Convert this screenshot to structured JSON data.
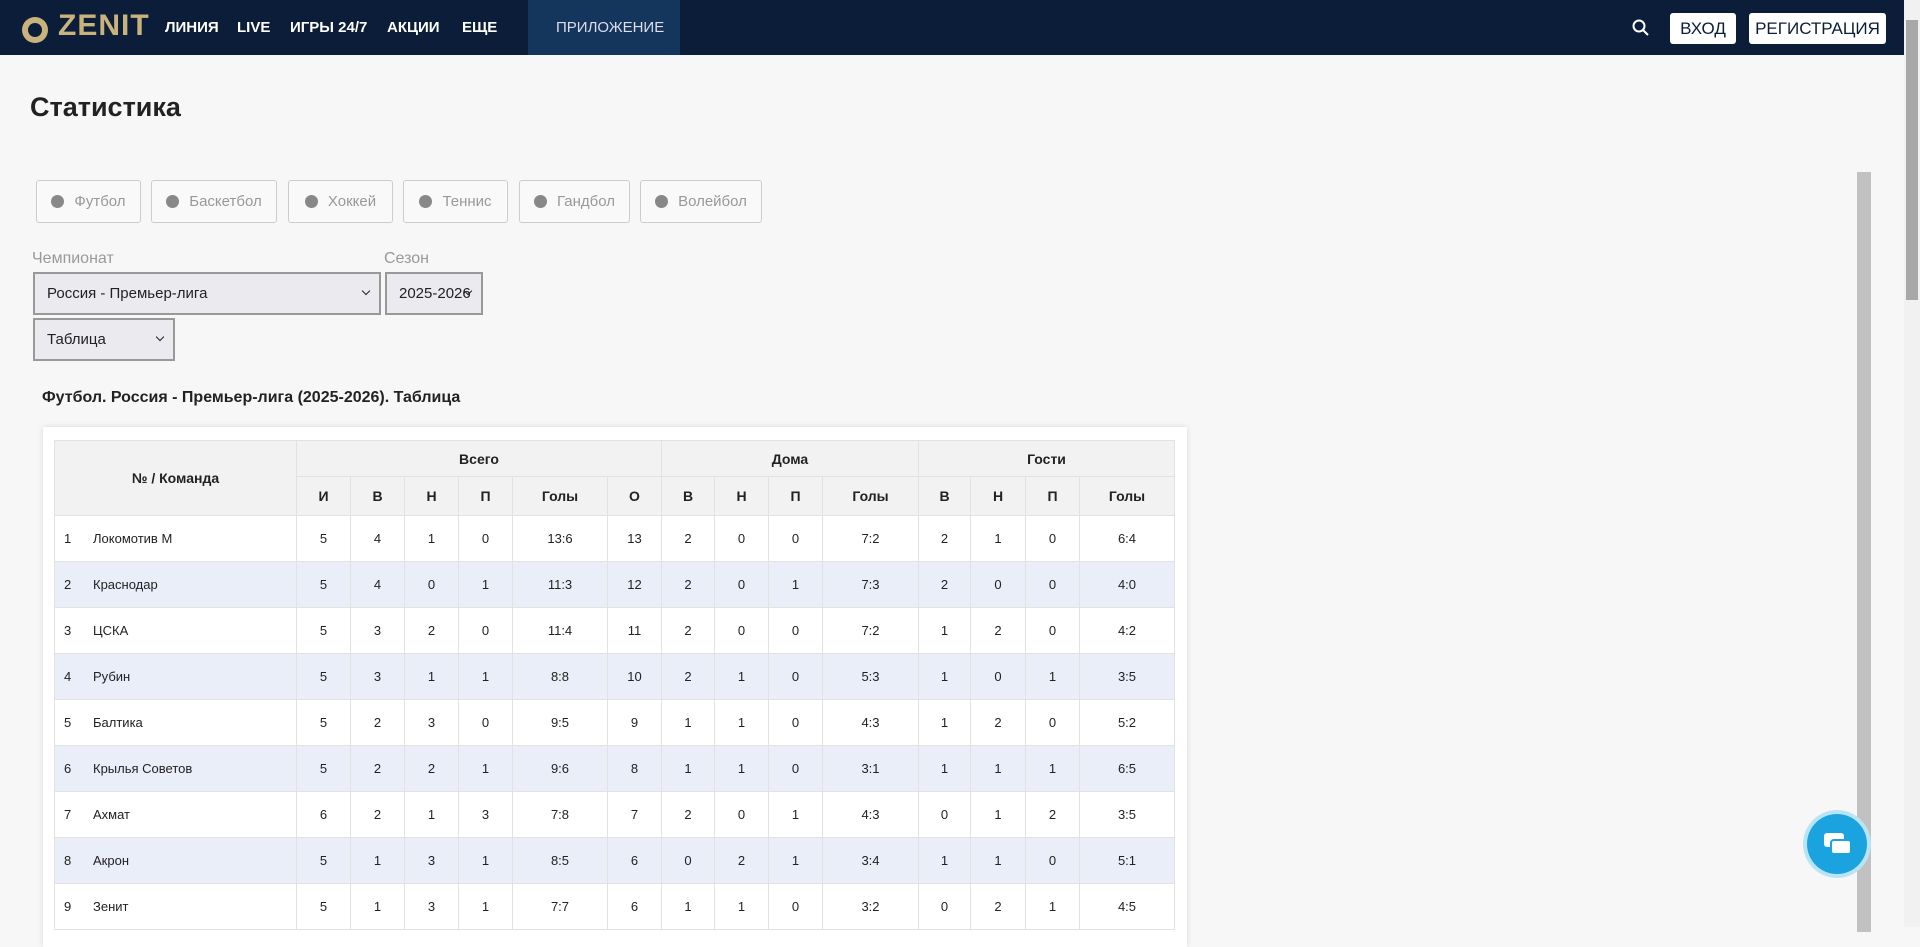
{
  "nav": {
    "logo": "ZENIT",
    "items": [
      "ЛИНИЯ",
      "LIVE",
      "ИГРЫ 24/7",
      "АКЦИИ",
      "ЕЩЕ",
      "ПРИЛОЖЕНИЕ"
    ],
    "login": "ВХОД",
    "register": "РЕГИСТРАЦИЯ"
  },
  "page": {
    "title": "Статистика",
    "sports": [
      "Футбол",
      "Баскетбол",
      "Хоккей",
      "Теннис",
      "Гандбол",
      "Волейбол"
    ],
    "championship_label": "Чемпионат",
    "championship": "Россия - Премьер-лига",
    "season_label": "Сезон",
    "season": "2025-2026",
    "view": "Таблица"
  },
  "table": {
    "title": "Футбол. Россия - Премьер-лига (2025-2026). Таблица",
    "groups": [
      "№ / Команда",
      "Всего",
      "Дома",
      "Гости"
    ],
    "columns": [
      "И",
      "В",
      "Н",
      "П",
      "Голы",
      "О",
      "В",
      "Н",
      "П",
      "Голы",
      "В",
      "Н",
      "П",
      "Голы"
    ],
    "rows": [
      [
        1,
        "Локомотив М",
        5,
        4,
        1,
        0,
        "13:6",
        13,
        2,
        0,
        0,
        "7:2",
        2,
        1,
        0,
        "6:4"
      ],
      [
        2,
        "Краснодар",
        5,
        4,
        0,
        1,
        "11:3",
        12,
        2,
        0,
        1,
        "7:3",
        2,
        0,
        0,
        "4:0"
      ],
      [
        3,
        "ЦСКА",
        5,
        3,
        2,
        0,
        "11:4",
        11,
        2,
        0,
        0,
        "7:2",
        1,
        2,
        0,
        "4:2"
      ],
      [
        4,
        "Рубин",
        5,
        3,
        1,
        1,
        "8:8",
        10,
        2,
        1,
        0,
        "5:3",
        1,
        0,
        1,
        "3:5"
      ],
      [
        5,
        "Балтика",
        5,
        2,
        3,
        0,
        "9:5",
        9,
        1,
        1,
        0,
        "4:3",
        1,
        2,
        0,
        "5:2"
      ],
      [
        6,
        "Крылья Советов",
        5,
        2,
        2,
        1,
        "9:6",
        8,
        1,
        1,
        0,
        "3:1",
        1,
        1,
        1,
        "6:5"
      ],
      [
        7,
        "Ахмат",
        6,
        2,
        1,
        3,
        "7:8",
        7,
        2,
        0,
        1,
        "4:3",
        0,
        1,
        2,
        "3:5"
      ],
      [
        8,
        "Акрон",
        5,
        1,
        3,
        1,
        "8:5",
        6,
        0,
        2,
        1,
        "3:4",
        1,
        1,
        0,
        "5:1"
      ],
      [
        9,
        "Зенит",
        5,
        1,
        3,
        1,
        "7:7",
        6,
        1,
        1,
        0,
        "3:2",
        0,
        2,
        1,
        "4:5"
      ]
    ]
  }
}
